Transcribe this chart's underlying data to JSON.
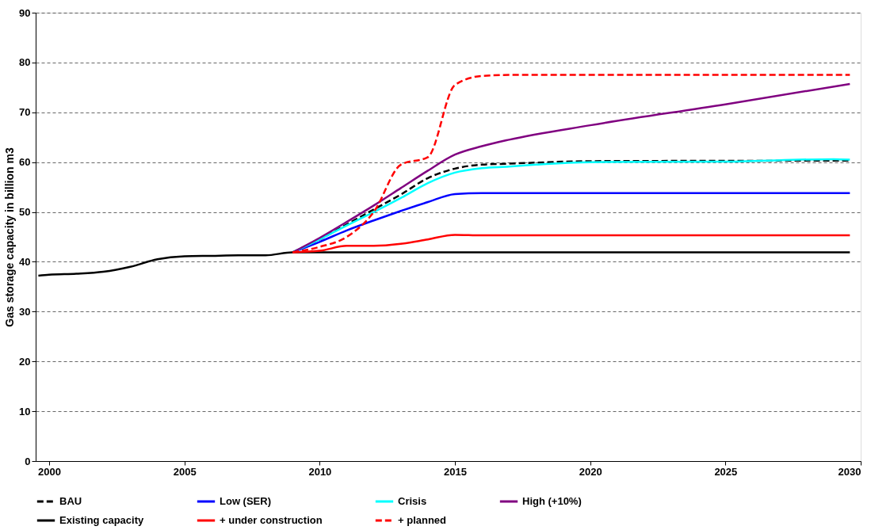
{
  "chart_data": {
    "type": "line",
    "ylabel": "Gas storage capacity in billion m3",
    "xlim": [
      1999.5,
      2030
    ],
    "xticks": [
      2000,
      2005,
      2010,
      2015,
      2020,
      2025,
      2030
    ],
    "ylim": [
      0,
      90
    ],
    "yticks": [
      0,
      10,
      20,
      30,
      40,
      50,
      60,
      70,
      80,
      90
    ],
    "grid": "y",
    "legend": "bottom",
    "marker": "none",
    "series": [
      {
        "name": "BAU",
        "color": "#000000",
        "line_style": "dashed",
        "x": [
          2009,
          2010,
          2011,
          2012,
          2013,
          2014,
          2015,
          2016,
          2017,
          2018,
          2020,
          2029.6
        ],
        "values": [
          41.9,
          44.5,
          47.5,
          50.5,
          53.5,
          56.8,
          58.7,
          59.5,
          59.7,
          59.9,
          60.2,
          60.3
        ]
      },
      {
        "name": "Low (SER)",
        "color": "#0000ff",
        "line_style": "solid",
        "x": [
          2009,
          2010,
          2011,
          2012,
          2013,
          2014,
          2015,
          2016,
          2029.6
        ],
        "values": [
          41.9,
          44,
          46.3,
          48.3,
          50.2,
          52,
          53.6,
          53.8,
          53.8
        ]
      },
      {
        "name": "Crisis",
        "color": "#00ffff",
        "line_style": "solid",
        "x": [
          2009,
          2010,
          2011,
          2012,
          2013,
          2014,
          2015,
          2016,
          2017,
          2018,
          2020,
          2025,
          2029,
          2029.6
        ],
        "values": [
          41.9,
          44.5,
          47.3,
          50,
          52.8,
          55.8,
          57.9,
          58.8,
          59.1,
          59.5,
          60,
          60.1,
          60.6,
          60.5
        ]
      },
      {
        "name": "High (+10%)",
        "color": "#800080",
        "line_style": "solid",
        "x": [
          2009,
          2010,
          2011,
          2012,
          2013,
          2014,
          2015,
          2016,
          2017,
          2020,
          2025,
          2029.6
        ],
        "values": [
          41.9,
          44.8,
          48,
          51.3,
          54.8,
          58.3,
          61.5,
          63.2,
          64.5,
          67.4,
          71.6,
          75.7
        ]
      },
      {
        "name": "Existing capacity",
        "color": "#000000",
        "line_style": "solid",
        "x": [
          1999.6,
          2000,
          2001,
          2002,
          2003,
          2004,
          2005,
          2006,
          2007,
          2008,
          2009,
          2029.6
        ],
        "values": [
          37.2,
          37.4,
          37.6,
          38,
          39,
          40.5,
          41.1,
          41.2,
          41.3,
          41.3,
          41.9,
          41.9
        ]
      },
      {
        "name": "+ under construction",
        "color": "#ff0000",
        "line_style": "solid",
        "x": [
          2009,
          2010,
          2011,
          2012,
          2013,
          2014,
          2015,
          2016,
          2029.6
        ],
        "values": [
          41.9,
          42.2,
          43.2,
          43.2,
          43.6,
          44.5,
          45.4,
          45.3,
          45.3
        ]
      },
      {
        "name": "+ planned",
        "color": "#ff0000",
        "line_style": "dashed",
        "x": [
          2009,
          2010,
          2011,
          2012,
          2013,
          2014,
          2015,
          2016,
          2017,
          2029.6
        ],
        "values": [
          41.9,
          43,
          45,
          50,
          59.5,
          61,
          75.5,
          77.3,
          77.5,
          77.5
        ]
      }
    ]
  }
}
